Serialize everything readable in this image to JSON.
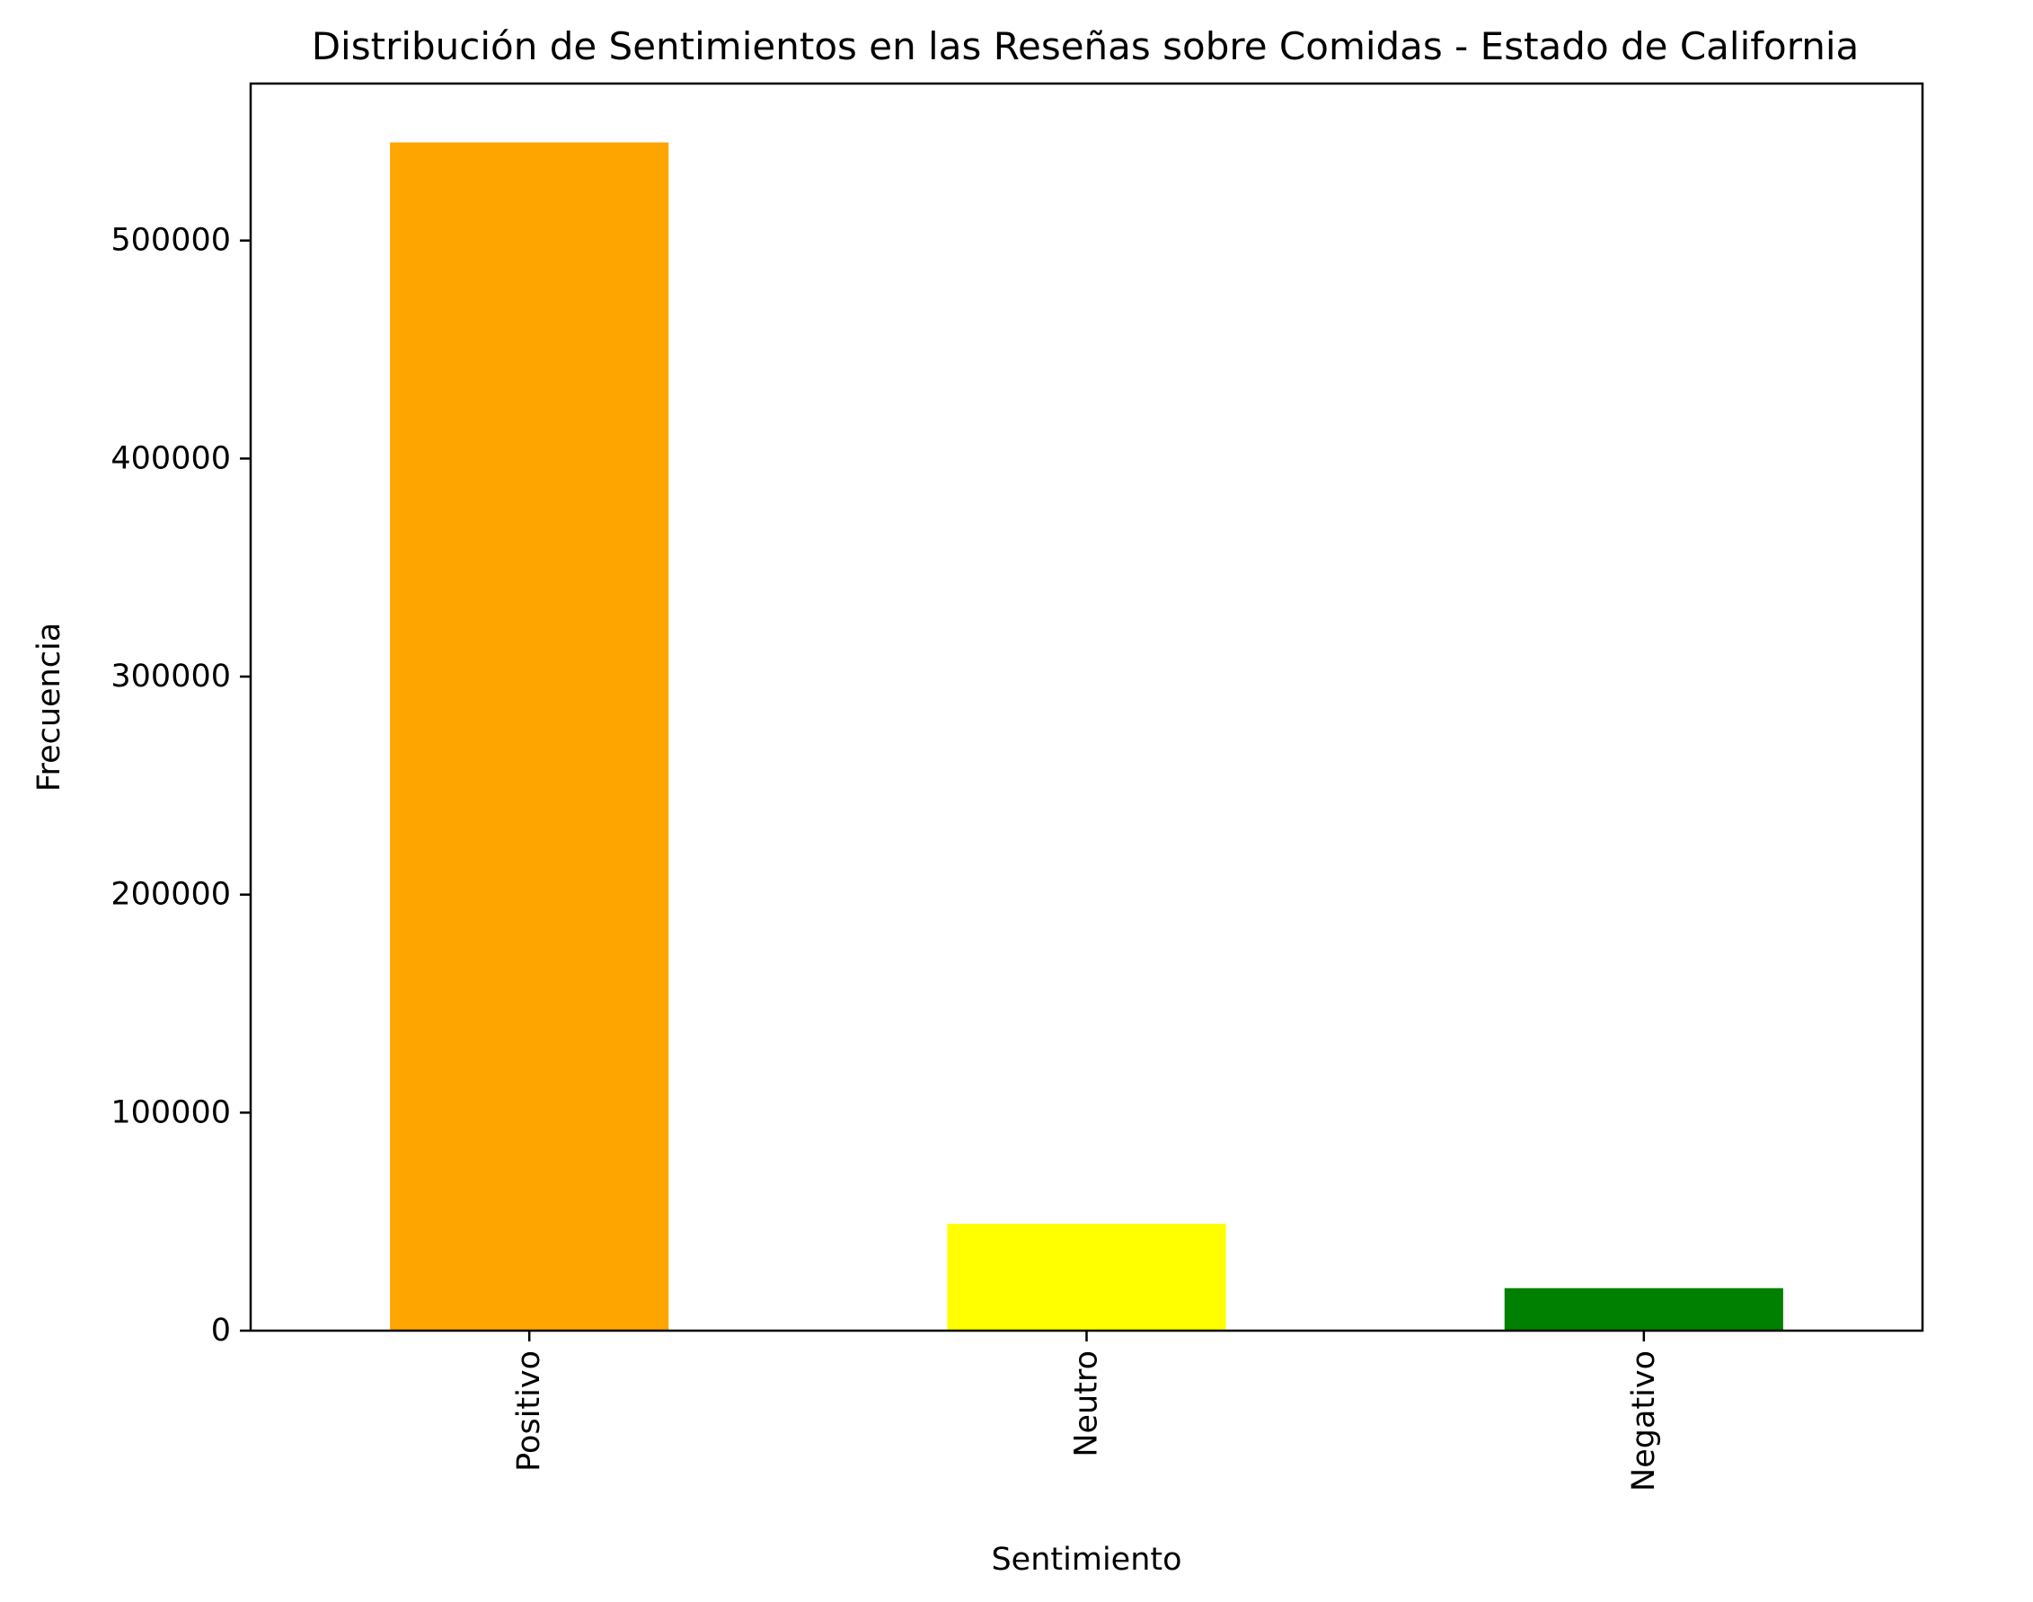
{
  "chart_data": {
    "type": "bar",
    "title": "Distribución de Sentimientos en las Reseñas sobre Comidas - Estado de California",
    "xlabel": "Sentimiento",
    "ylabel": "Frecuencia",
    "categories": [
      "Positivo",
      "Neutro",
      "Negativo"
    ],
    "values": [
      545000,
      49000,
      19500
    ],
    "colors": [
      "#FFA500",
      "#FFFF00",
      "#008000"
    ],
    "ylim": [
      0,
      572000
    ],
    "yticks": [
      0,
      100000,
      200000,
      300000,
      400000,
      500000
    ],
    "ytick_labels": [
      "0",
      "100000",
      "200000",
      "300000",
      "400000",
      "500000"
    ],
    "grid": false,
    "legend": "none",
    "x_tick_rotation": "vertical"
  }
}
